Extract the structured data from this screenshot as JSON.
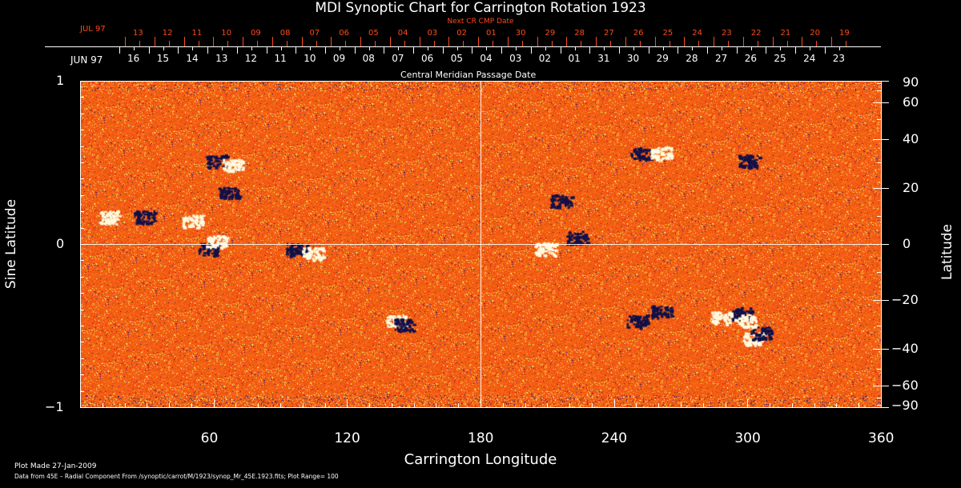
{
  "chart_data": {
    "type": "heatmap",
    "title": "MDI Synoptic Chart for Carrington Rotation 1923",
    "xlabel": "Carrington Longitude",
    "ylabel_left": "Sine Latitude",
    "ylabel_right": "Latitude",
    "xlim": [
      0,
      360
    ],
    "ylim": [
      -1,
      1
    ],
    "x_ticks": [
      "60",
      "120",
      "180",
      "240",
      "300",
      "360"
    ],
    "y_ticks_left": [
      "1",
      "0",
      "−1"
    ],
    "y_ticks_right": [
      "90",
      "60",
      "40",
      "20",
      "0",
      "−20",
      "−40",
      "−60",
      "−90"
    ],
    "y_tick_values_right": [
      90,
      60,
      40,
      20,
      0,
      -20,
      -40,
      -60,
      -90
    ],
    "top_axis_label": "Central Meridian Passage Date",
    "top_axis_month": "JUN 97",
    "top_axis_dates": [
      "16",
      "15",
      "14",
      "13",
      "12",
      "11",
      "10",
      "09",
      "08",
      "07",
      "06",
      "05",
      "04",
      "03",
      "02",
      "01",
      "31",
      "30",
      "29",
      "28",
      "27",
      "26",
      "25",
      "24",
      "23"
    ],
    "next_axis_label": "Next CR CMP Date",
    "next_axis_month": "JUL 97",
    "next_axis_dates": [
      "13",
      "12",
      "11",
      "10",
      "09",
      "08",
      "07",
      "06",
      "05",
      "04",
      "03",
      "02",
      "01",
      "30",
      "29",
      "28",
      "27",
      "26",
      "25",
      "24",
      "23",
      "22",
      "21",
      "20",
      "19"
    ],
    "plot_range": 100,
    "colors": {
      "background": "#e84a10",
      "positive": "#fff8a0",
      "negative": "#14146e",
      "grid": "#ffffff"
    }
  },
  "footer": {
    "plot_made": "Plot Made 27-Jan-2009",
    "data_from": "Data from 45E – Radial Component From /synoptic/carrot/M/1923/synop_Mr_45E.1923.fits; Plot Range=  100"
  }
}
